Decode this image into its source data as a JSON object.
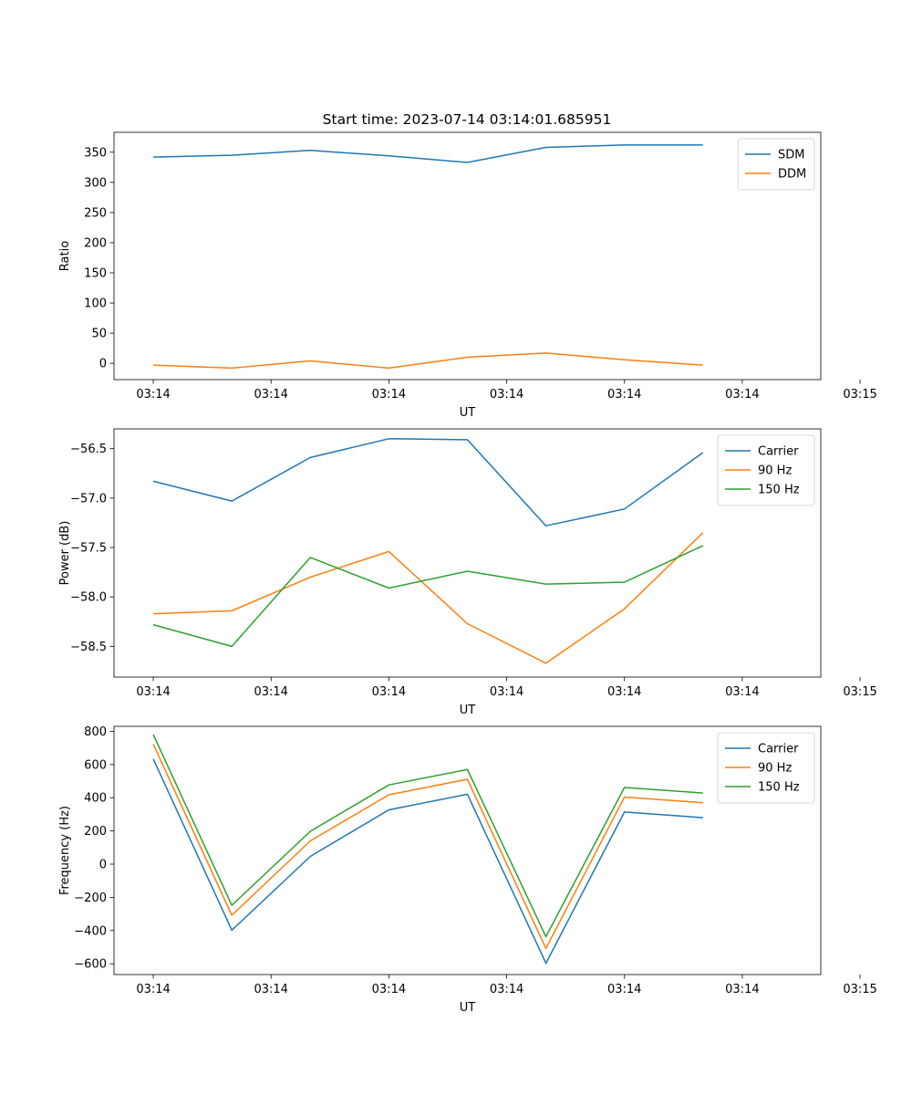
{
  "title": "Start time: 2023-07-14 03:14:01.685951",
  "colors": {
    "blue": "#1f77b4",
    "orange": "#ff7f0e",
    "green": "#2ca02c"
  },
  "chart_data": [
    {
      "type": "line",
      "xlabel": "UT",
      "ylabel": "Ratio",
      "xlim": [
        -0.5,
        8.5
      ],
      "ylim": [
        -27,
        383
      ],
      "x_ticks": [
        0,
        1.5,
        3,
        4.5,
        6,
        7.5,
        9
      ],
      "x_tick_labels": [
        "03:14",
        "03:14",
        "03:14",
        "03:14",
        "03:14",
        "03:14",
        "03:15"
      ],
      "y_ticks": [
        0,
        50,
        100,
        150,
        200,
        250,
        300,
        350
      ],
      "y_tick_labels": [
        "0",
        "50",
        "100",
        "150",
        "200",
        "250",
        "300",
        "350"
      ],
      "legend_position": "upper right",
      "x": [
        0,
        1,
        2,
        3,
        4,
        5,
        6,
        7
      ],
      "series": [
        {
          "name": "SDM",
          "color": "#1f77b4",
          "values": [
            342,
            345,
            353,
            344,
            333,
            358,
            362,
            362
          ]
        },
        {
          "name": "DDM",
          "color": "#ff7f0e",
          "values": [
            -3,
            -8,
            4,
            -8,
            10,
            17,
            6,
            -3
          ]
        }
      ]
    },
    {
      "type": "line",
      "xlabel": "UT",
      "ylabel": "Power (dB)",
      "xlim": [
        -0.5,
        8.5
      ],
      "ylim": [
        -58.81,
        -56.3
      ],
      "x_ticks": [
        0,
        1.5,
        3,
        4.5,
        6,
        7.5,
        9
      ],
      "x_tick_labels": [
        "03:14",
        "03:14",
        "03:14",
        "03:14",
        "03:14",
        "03:14",
        "03:15"
      ],
      "y_ticks": [
        -58.5,
        -58.0,
        -57.5,
        -57.0,
        -56.5
      ],
      "y_tick_labels": [
        "−58.5",
        "−58.0",
        "−57.5",
        "−57.0",
        "−56.5"
      ],
      "legend_position": "upper right",
      "x": [
        0,
        1,
        2,
        3,
        4,
        5,
        6,
        7
      ],
      "series": [
        {
          "name": "Carrier",
          "color": "#1f77b4",
          "values": [
            -56.83,
            -57.03,
            -56.59,
            -56.4,
            -56.41,
            -57.28,
            -57.11,
            -56.54
          ]
        },
        {
          "name": "90 Hz",
          "color": "#ff7f0e",
          "values": [
            -58.17,
            -58.14,
            -57.8,
            -57.54,
            -58.27,
            -58.67,
            -58.12,
            -57.35
          ]
        },
        {
          "name": "150 Hz",
          "color": "#2ca02c",
          "values": [
            -58.28,
            -58.5,
            -57.6,
            -57.91,
            -57.74,
            -57.87,
            -57.85,
            -57.48
          ]
        }
      ]
    },
    {
      "type": "line",
      "xlabel": "UT",
      "ylabel": "Frequency (Hz)",
      "xlim": [
        -0.5,
        8.5
      ],
      "ylim": [
        -665,
        830
      ],
      "x_ticks": [
        0,
        1.5,
        3,
        4.5,
        6,
        7.5,
        9
      ],
      "x_tick_labels": [
        "03:14",
        "03:14",
        "03:14",
        "03:14",
        "03:14",
        "03:14",
        "03:15"
      ],
      "y_ticks": [
        -600,
        -400,
        -200,
        0,
        200,
        400,
        600,
        800
      ],
      "y_tick_labels": [
        "−600",
        "−400",
        "−200",
        "0",
        "200",
        "400",
        "600",
        "800"
      ],
      "legend_position": "upper right",
      "x": [
        0,
        1,
        2,
        3,
        4,
        5,
        6,
        7
      ],
      "series": [
        {
          "name": "Carrier",
          "color": "#1f77b4",
          "values": [
            633,
            -398,
            47,
            327,
            421,
            -597,
            314,
            280
          ]
        },
        {
          "name": "90 Hz",
          "color": "#ff7f0e",
          "values": [
            722,
            -308,
            140,
            418,
            511,
            -507,
            404,
            370
          ]
        },
        {
          "name": "150 Hz",
          "color": "#2ca02c",
          "values": [
            780,
            -248,
            198,
            477,
            570,
            -437,
            462,
            428
          ]
        }
      ]
    }
  ]
}
